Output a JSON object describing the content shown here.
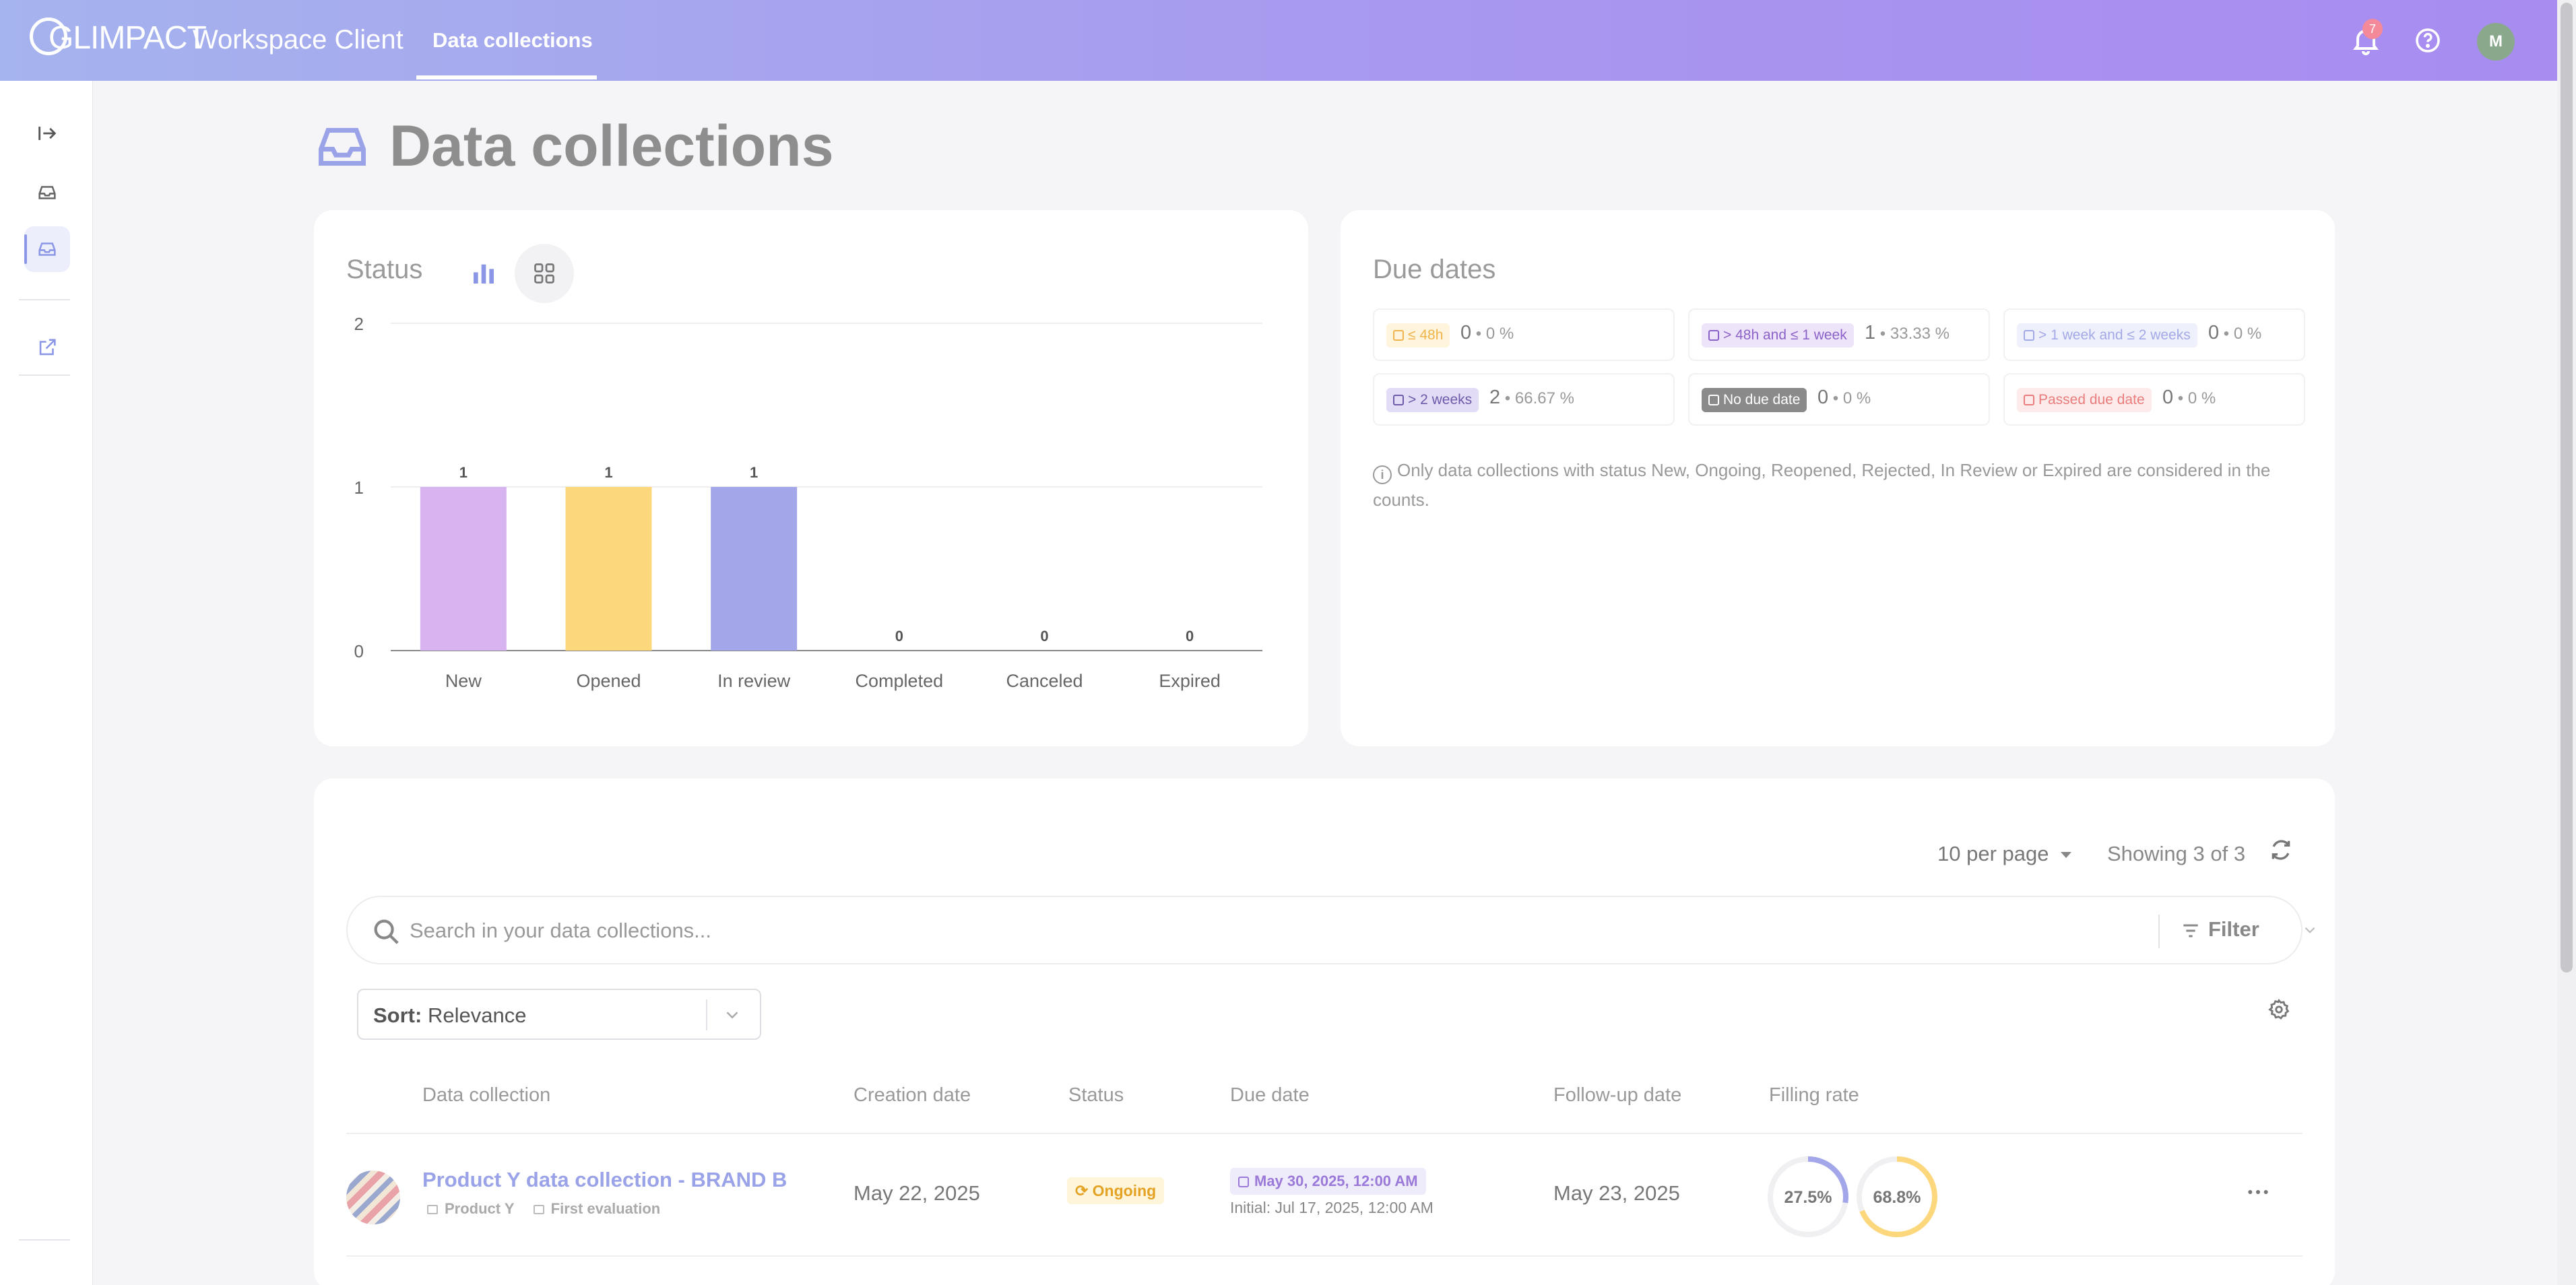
{
  "header": {
    "logo": "GLIMPACT",
    "app_name": "Workspace Client",
    "active_tab": "Data collections",
    "notifications_count": "7",
    "user_initial": "M"
  },
  "page": {
    "title": "Data collections"
  },
  "status_card": {
    "title": "Status",
    "chart_data": {
      "type": "bar",
      "categories": [
        "New",
        "Opened",
        "In review",
        "Completed",
        "Canceled",
        "Expired"
      ],
      "values": [
        1,
        1,
        1,
        0,
        0,
        0
      ],
      "colors": [
        "#d7b3f0",
        "#fdd77c",
        "#a3a7ea",
        "#cccccc",
        "#cccccc",
        "#cccccc"
      ],
      "ylim": [
        0,
        2
      ],
      "yticks": [
        0,
        1,
        2
      ],
      "grid": true
    }
  },
  "due_card": {
    "title": "Due dates",
    "buckets": [
      {
        "label": "≤ 48h",
        "count": "0",
        "pct": "0 %",
        "color": "#f1b44c",
        "bg": "#fff4dc"
      },
      {
        "label": "> 48h and ≤ 1 week",
        "count": "1",
        "pct": "33.33 %",
        "color": "#8b62c7",
        "bg": "#eee4fa"
      },
      {
        "label": "> 1 week and ≤ 2 weeks",
        "count": "0",
        "pct": "0 %",
        "color": "#a3a9e6",
        "bg": "#eef0fb"
      },
      {
        "label": "> 2 weeks",
        "count": "2",
        "pct": "66.67 %",
        "color": "#6e5aa8",
        "bg": "#e2dcf6"
      },
      {
        "label": "No due date",
        "count": "0",
        "pct": "0 %",
        "color": "#ffffff",
        "bg": "#8a8a8a"
      },
      {
        "label": "Passed due date",
        "count": "0",
        "pct": "0 %",
        "color": "#ea7c7c",
        "bg": "#fdeaea"
      }
    ],
    "note": "Only data collections with status New, Ongoing, Reopened, Rejected, In Review or Expired are considered in the counts."
  },
  "list": {
    "per_page": "10 per page",
    "showing": "Showing 3 of 3",
    "search_placeholder": "Search in your data collections...",
    "filter_label": "Filter",
    "sort_prefix": "Sort:",
    "sort_value": "Relevance",
    "columns": [
      "Data collection",
      "Creation date",
      "Status",
      "Due date",
      "Follow-up date",
      "Filling rate"
    ],
    "rows": [
      {
        "name": "Product Y data collection - BRAND B",
        "product": "Product Y",
        "evaluation": "First evaluation",
        "created": "May 22, 2025",
        "status": "Ongoing",
        "due": "May 30, 2025, 12:00 AM",
        "due_initial": "Initial: Jul 17, 2025, 12:00 AM",
        "followup": "May 23, 2025",
        "fill_rate_1": "27.5%",
        "fill_rate_1_value": 27.5,
        "fill_rate_2": "68.8%",
        "fill_rate_2_value": 68.8
      }
    ]
  }
}
